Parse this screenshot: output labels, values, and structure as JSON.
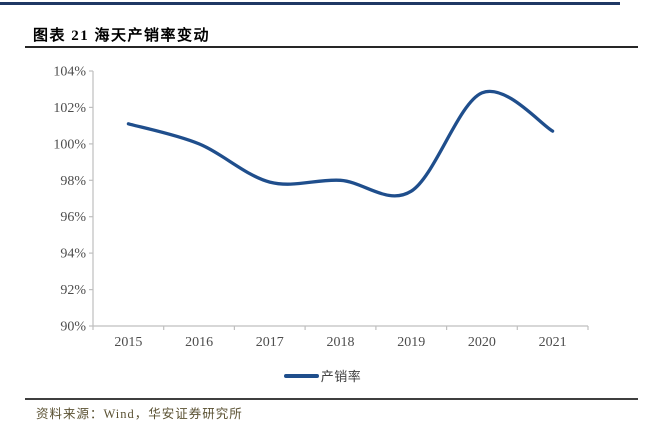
{
  "header": {
    "title": "图表 21 海天产销率变动"
  },
  "footer": {
    "source": "资料来源：Wind，华安证券研究所"
  },
  "colors": {
    "accent_line": "#1F4E8C",
    "top_rule": "#1F3864",
    "title_rule": "#262626",
    "axis": "#BFBFBF",
    "tick_label": "#4D4D4D",
    "legend_text": "#404040",
    "source_rule": "#3F3F3F",
    "source_text": "#5A5132"
  },
  "chart_data": {
    "type": "line",
    "title": "海天产销率变动",
    "figure_label": "图表 21",
    "categories": [
      "2015",
      "2016",
      "2017",
      "2018",
      "2019",
      "2020",
      "2021"
    ],
    "series": [
      {
        "name": "产销率",
        "values": [
          101.1,
          100.0,
          97.9,
          98.0,
          97.4,
          102.8,
          100.7
        ]
      }
    ],
    "xlabel": "",
    "ylabel": "",
    "ylim": [
      90,
      104
    ],
    "ytick_step": 2,
    "ytick_suffix": "%",
    "grid": false,
    "smooth": true,
    "legend_position": "bottom-center"
  }
}
